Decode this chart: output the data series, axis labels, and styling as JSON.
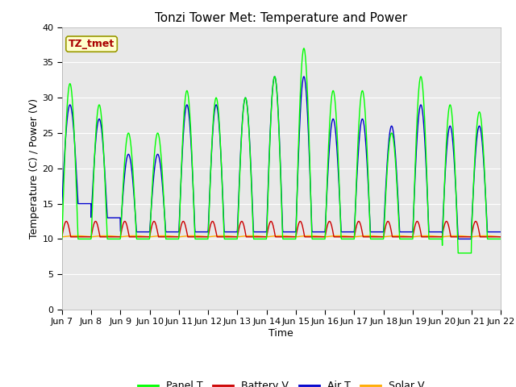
{
  "title": "Tonzi Tower Met: Temperature and Power",
  "xlabel": "Time",
  "ylabel": "Temperature (C) / Power (V)",
  "annotation": "TZ_tmet",
  "xlim": [
    0,
    15
  ],
  "ylim": [
    0,
    40
  ],
  "yticks": [
    0,
    5,
    10,
    15,
    20,
    25,
    30,
    35,
    40
  ],
  "xtick_labels": [
    "Jun 7",
    "Jun 8",
    "Jun 9",
    "Jun 10",
    "Jun 11",
    "Jun 12",
    "Jun 13",
    "Jun 14",
    "Jun 15",
    "Jun 16",
    "Jun 17",
    "Jun 18",
    "Jun 19",
    "Jun 20",
    "Jun 21",
    "Jun 22"
  ],
  "plot_bg_color": "#e8e8e8",
  "panel_T_color": "#00ff00",
  "battery_V_color": "#cc0000",
  "air_T_color": "#0000cc",
  "solar_V_color": "#ffaa00",
  "legend_labels": [
    "Panel T",
    "Battery V",
    "Air T",
    "Solar V"
  ],
  "title_fontsize": 11,
  "axis_fontsize": 9,
  "tick_fontsize": 8,
  "annot_fontsize": 9
}
